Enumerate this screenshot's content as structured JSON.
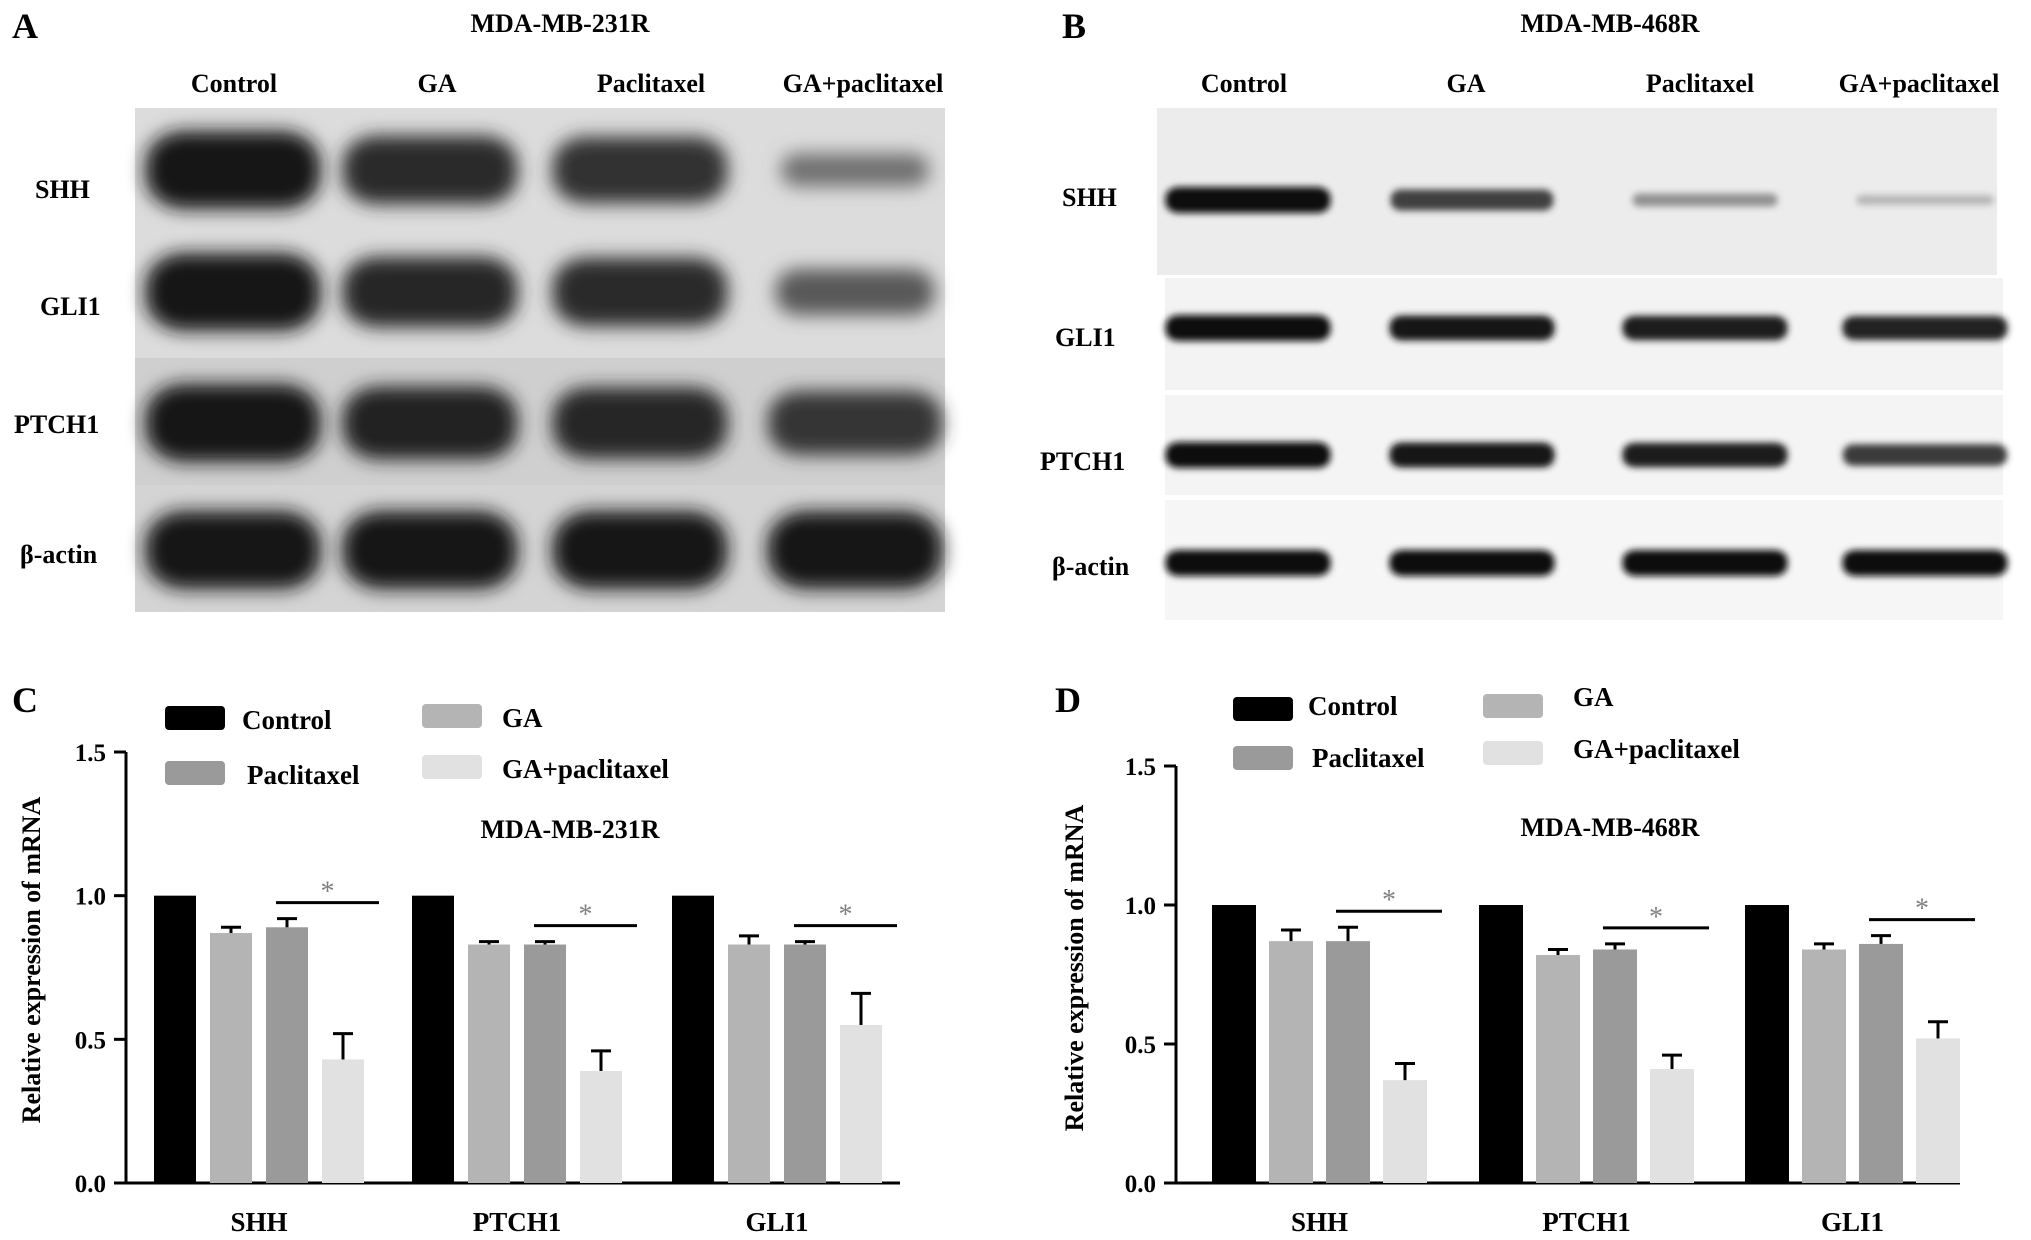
{
  "colors": {
    "Control": "#000000",
    "GA": "#b4b4b4",
    "Paclitaxel": "#9a9a9a",
    "GA+paclitaxel": "#e1e1e1",
    "significance_mark": "#808080"
  },
  "blots": [
    {
      "letter": "A",
      "cell_line": "MDA-MB-231R",
      "lanes": [
        "Control",
        "GA",
        "Paclitaxel",
        "GA+paclitaxel"
      ],
      "proteins": [
        "SHH",
        "GLI1",
        "PTCH1",
        "β-actin"
      ],
      "band_intensity": [
        [
          1.0,
          0.85,
          0.82,
          0.3
        ],
        [
          1.0,
          0.88,
          0.85,
          0.5
        ],
        [
          1.0,
          0.92,
          0.9,
          0.78
        ],
        [
          1.0,
          1.0,
          1.0,
          1.0
        ]
      ]
    },
    {
      "letter": "B",
      "cell_line": "MDA-MB-468R",
      "lanes": [
        "Control",
        "GA",
        "Paclitaxel",
        "GA+paclitaxel"
      ],
      "proteins": [
        "SHH",
        "GLI1",
        "PTCH1",
        "β-actin"
      ],
      "band_intensity": [
        [
          1.0,
          0.75,
          0.35,
          0.18
        ],
        [
          1.0,
          0.95,
          0.92,
          0.9
        ],
        [
          1.0,
          0.95,
          0.92,
          0.78
        ],
        [
          1.0,
          1.0,
          1.0,
          1.0
        ]
      ]
    }
  ],
  "chart_data": [
    {
      "letter": "C",
      "type": "bar",
      "title": "MDA-MB-231R",
      "ylabel": "Relative expression of mRNA",
      "xlabel": "",
      "categories": [
        "SHH",
        "PTCH1",
        "GLI1"
      ],
      "ylim": [
        0,
        1.5
      ],
      "yticks": [
        "0.0",
        "0.5",
        "1.0",
        "1.5"
      ],
      "series": [
        {
          "name": "Control",
          "values": [
            1.0,
            1.0,
            1.0
          ],
          "errors": [
            0,
            0,
            0
          ]
        },
        {
          "name": "GA",
          "values": [
            0.87,
            0.83,
            0.83
          ],
          "errors": [
            0.02,
            0.01,
            0.03
          ]
        },
        {
          "name": "Paclitaxel",
          "values": [
            0.89,
            0.83,
            0.83
          ],
          "errors": [
            0.03,
            0.01,
            0.01
          ]
        },
        {
          "name": "GA+paclitaxel",
          "values": [
            0.43,
            0.39,
            0.55
          ],
          "errors": [
            0.09,
            0.07,
            0.11
          ]
        }
      ],
      "significance": {
        "mark": "*",
        "from_series": "Paclitaxel",
        "to_series": "GA+paclitaxel"
      },
      "legend": {
        "columns": [
          [
            "Control",
            "Paclitaxel"
          ],
          [
            "GA",
            "GA+paclitaxel"
          ]
        ],
        "position": "top"
      },
      "grid": false
    },
    {
      "letter": "D",
      "type": "bar",
      "title": "MDA-MB-468R",
      "ylabel": "Relative expression of mRNA",
      "xlabel": "",
      "categories": [
        "SHH",
        "PTCH1",
        "GLI1"
      ],
      "ylim": [
        0,
        1.5
      ],
      "yticks": [
        "0.0",
        "0.5",
        "1.0",
        "1.5"
      ],
      "series": [
        {
          "name": "Control",
          "values": [
            1.0,
            1.0,
            1.0
          ],
          "errors": [
            0,
            0,
            0
          ]
        },
        {
          "name": "GA",
          "values": [
            0.87,
            0.82,
            0.84
          ],
          "errors": [
            0.04,
            0.02,
            0.02
          ]
        },
        {
          "name": "Paclitaxel",
          "values": [
            0.87,
            0.84,
            0.86
          ],
          "errors": [
            0.05,
            0.02,
            0.03
          ]
        },
        {
          "name": "GA+paclitaxel",
          "values": [
            0.37,
            0.41,
            0.52
          ],
          "errors": [
            0.06,
            0.05,
            0.06
          ]
        }
      ],
      "significance": {
        "mark": "*",
        "from_series": "Paclitaxel",
        "to_series": "GA+paclitaxel"
      },
      "legend": {
        "columns": [
          [
            "Control",
            "Paclitaxel"
          ],
          [
            "GA",
            "GA+paclitaxel"
          ]
        ],
        "position": "top"
      },
      "grid": false
    }
  ]
}
